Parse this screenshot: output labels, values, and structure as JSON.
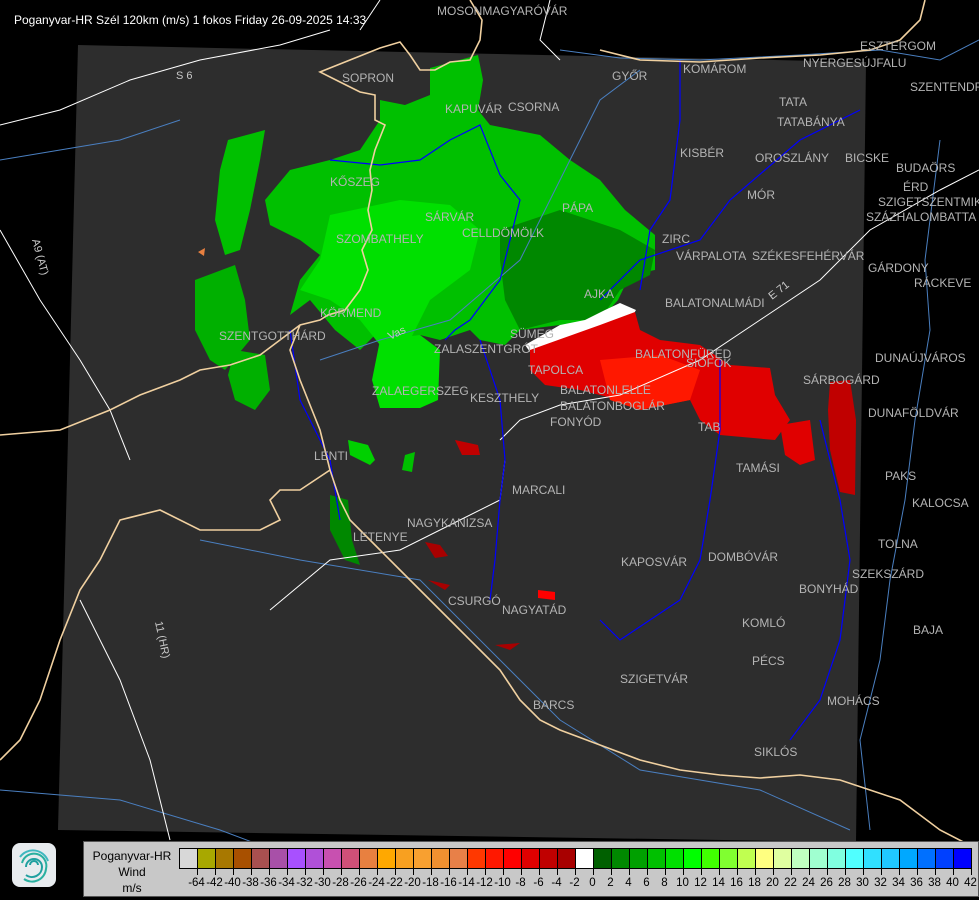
{
  "title": "Poganyvar-HR Szél 120km (m/s) 1 fokos Friday 26-09-2025 14:33",
  "colors": {
    "background": "#000000",
    "radar_area": "#2d2d2d",
    "country_border": "#f0d0a0",
    "county_border": "#0000ff",
    "rivers": "#4a7fc0",
    "roads": "#ffffff"
  },
  "road_labels": [
    "S 6",
    "A9 (AT)",
    "11 (HR)",
    "E 71",
    "Vas"
  ],
  "cities": [
    {
      "name": "MOSONMAGYARÓVÁR"
    },
    {
      "name": "SOPRON"
    },
    {
      "name": "KAPUVÁR"
    },
    {
      "name": "CSORNA"
    },
    {
      "name": "GYŐR"
    },
    {
      "name": "KOMÁROM"
    },
    {
      "name": "ESZTERGOM"
    },
    {
      "name": "NYERGESÚJFALU"
    },
    {
      "name": "SZENTENDRE"
    },
    {
      "name": "TATA"
    },
    {
      "name": "TATABÁNYA"
    },
    {
      "name": "KISBÉR"
    },
    {
      "name": "OROSZLÁNY"
    },
    {
      "name": "BICSKE"
    },
    {
      "name": "BUDAÖRS"
    },
    {
      "name": "ÉRD"
    },
    {
      "name": "SZIGETSZENTMIKLÓS"
    },
    {
      "name": "SZÁZHALOMBATTA"
    },
    {
      "name": "MÓR"
    },
    {
      "name": "KŐSZEG"
    },
    {
      "name": "PÁPA"
    },
    {
      "name": "ZIRC"
    },
    {
      "name": "VÁRPALOTA"
    },
    {
      "name": "SZÉKESFEHÉRVÁR"
    },
    {
      "name": "GÁRDONY"
    },
    {
      "name": "RÁCKEVE"
    },
    {
      "name": "SZOMBATHELY"
    },
    {
      "name": "SÁRVÁR"
    },
    {
      "name": "CELLDÖMÖLK"
    },
    {
      "name": "AJKA"
    },
    {
      "name": "SZENTGOTTHÁRD"
    },
    {
      "name": "KÖRMEND"
    },
    {
      "name": "SÜMEG"
    },
    {
      "name": "ZALASZENTGRÓT"
    },
    {
      "name": "BALATONALMÁDI"
    },
    {
      "name": "TAPOLCA"
    },
    {
      "name": "BALATONFÜRED"
    },
    {
      "name": "SIÓFOK"
    },
    {
      "name": "DUNAÚJVÁROS"
    },
    {
      "name": "SÁRBOGÁRD"
    },
    {
      "name": "ZALAEGERSZEG"
    },
    {
      "name": "KESZTHELY"
    },
    {
      "name": "BALATONLELLE"
    },
    {
      "name": "BALATONBOGLÁR"
    },
    {
      "name": "FONYÓD"
    },
    {
      "name": "TAB"
    },
    {
      "name": "DUNAFÖLDVÁR"
    },
    {
      "name": "LENTI"
    },
    {
      "name": "TAMÁSI"
    },
    {
      "name": "PAKS"
    },
    {
      "name": "MARCALI"
    },
    {
      "name": "KALOCSA"
    },
    {
      "name": "LETENYE"
    },
    {
      "name": "NAGYKANIZSA"
    },
    {
      "name": "TOLNA"
    },
    {
      "name": "KAPOSVÁR"
    },
    {
      "name": "DOMBÓVÁR"
    },
    {
      "name": "SZEKSZÁRD"
    },
    {
      "name": "BONYHÁD"
    },
    {
      "name": "CSURGÓ"
    },
    {
      "name": "NAGYATÁD"
    },
    {
      "name": "KOMLÓ"
    },
    {
      "name": "BAJA"
    },
    {
      "name": "PÉCS"
    },
    {
      "name": "SZIGETVÁR"
    },
    {
      "name": "MOHÁCS"
    },
    {
      "name": "BARCS"
    },
    {
      "name": "SIKLÓS"
    }
  ],
  "legend": {
    "source": "Poganyvar-HR",
    "quantity": "Wind",
    "unit": "m/s",
    "colors": [
      "#d8d8d8",
      "#a8a800",
      "#a87800",
      "#a85000",
      "#a85050",
      "#a850a8",
      "#a850ff",
      "#b050d8",
      "#c850b0",
      "#d05078",
      "#e88040",
      "#ffa800",
      "#f8a020",
      "#f8a030",
      "#f09030",
      "#e88048",
      "#ff3800",
      "#ff1800",
      "#ff0000",
      "#e00000",
      "#c00000",
      "#a80000",
      "#ffffff",
      "#006000",
      "#008800",
      "#00a000",
      "#00c000",
      "#00e000",
      "#00ff00",
      "#40ff00",
      "#80ff30",
      "#c0ff50",
      "#ffff80",
      "#e0ffa0",
      "#c0ffc0",
      "#a0ffd0",
      "#80ffe0",
      "#50ffff",
      "#30e0ff",
      "#20c8ff",
      "#00a8ff",
      "#0070ff",
      "#0040ff",
      "#0000ff"
    ],
    "labels": [
      "-64",
      "-42",
      "-40",
      "-38",
      "-36",
      "-34",
      "-32",
      "-30",
      "-28",
      "-26",
      "-24",
      "-22",
      "-20",
      "-18",
      "-16",
      "-14",
      "-12",
      "-10",
      "-8",
      "-6",
      "-4",
      "-2",
      "0",
      "2",
      "4",
      "6",
      "8",
      "10",
      "12",
      "14",
      "16",
      "18",
      "20",
      "22",
      "24",
      "26",
      "28",
      "30",
      "32",
      "34",
      "36",
      "38",
      "40",
      "42"
    ]
  }
}
